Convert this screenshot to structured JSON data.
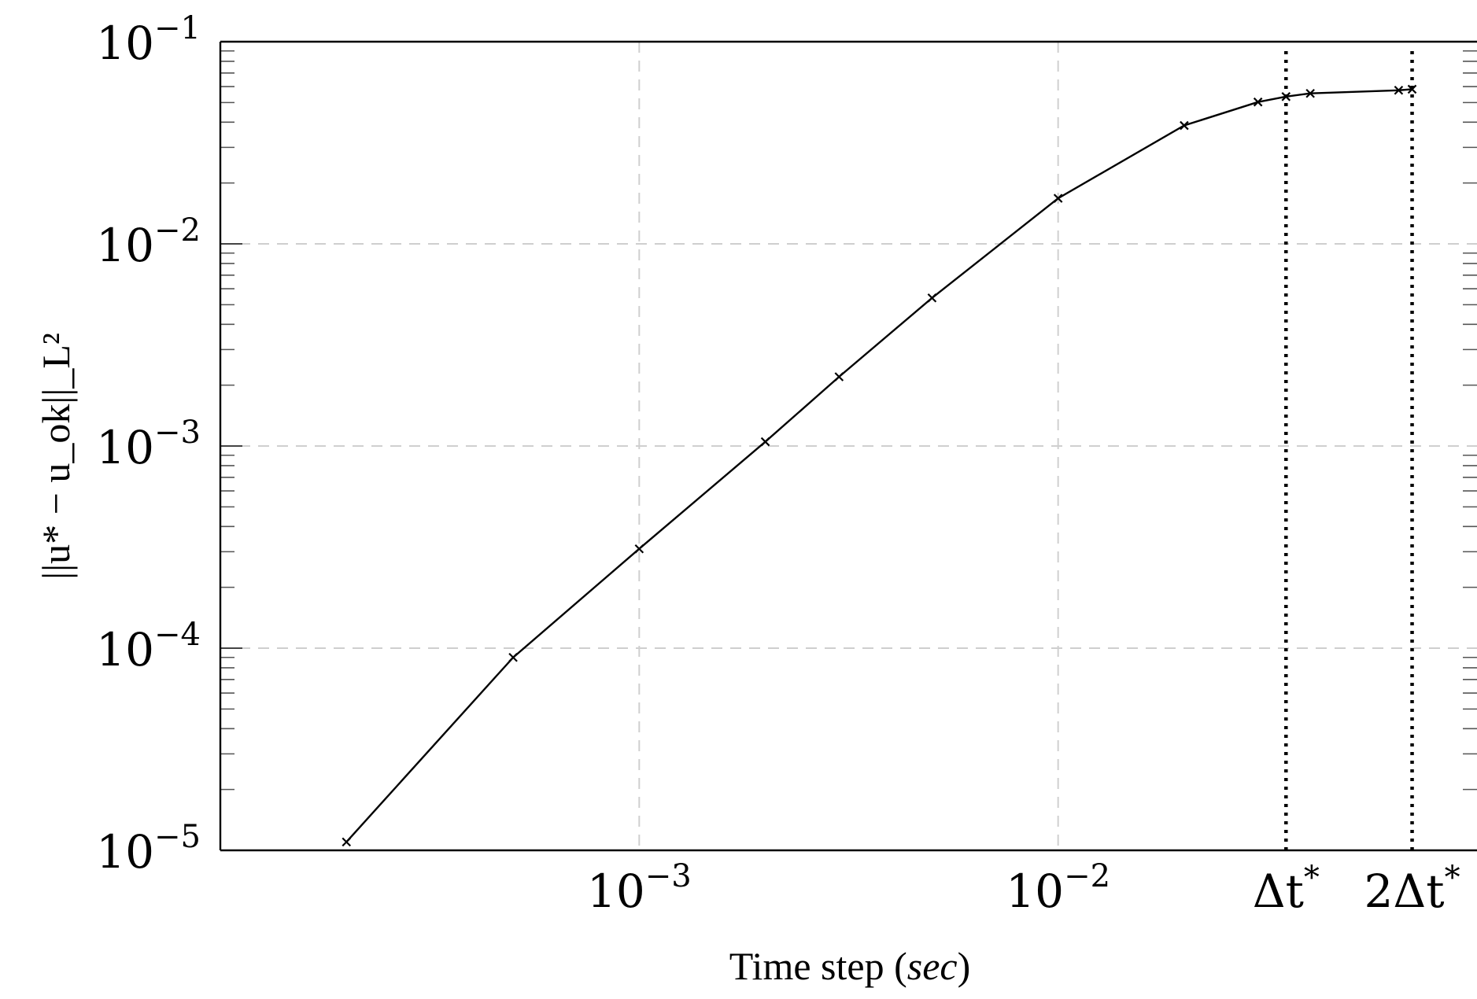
{
  "chart_data": {
    "type": "line",
    "title": "",
    "xlabel": "Time step",
    "xlabel_unit": "sec",
    "ylabel": "||u* − u_ok||_L²",
    "x_scale": "log",
    "y_scale": "log",
    "xlim": [
      0.0001,
      0.1
    ],
    "ylim": [
      1e-05,
      0.1
    ],
    "grid": true,
    "legend": "none",
    "x_ticks": [
      {
        "value": 0.001,
        "base": "10",
        "exp": "−3"
      },
      {
        "value": 0.01,
        "base": "10",
        "exp": "−2"
      }
    ],
    "y_ticks": [
      {
        "value": 0.1,
        "base": "10",
        "exp": "−1"
      },
      {
        "value": 0.01,
        "base": "10",
        "exp": "−2"
      },
      {
        "value": 0.001,
        "base": "10",
        "exp": "−3"
      },
      {
        "value": 0.0001,
        "base": "10",
        "exp": "−4"
      },
      {
        "value": 1e-05,
        "base": "10",
        "exp": "−5"
      }
    ],
    "reference_lines": [
      {
        "x": 0.035,
        "label_main": "Δt",
        "label_sup": "*",
        "style": "dotted"
      },
      {
        "x": 0.07,
        "label_main": "2Δt",
        "label_sup": "*",
        "style": "dotted"
      }
    ],
    "series": [
      {
        "marker": "x",
        "color": "#000000",
        "points": [
          {
            "x": 0.0002,
            "y": 1.1e-05
          },
          {
            "x": 0.0005,
            "y": 9e-05
          },
          {
            "x": 0.001,
            "y": 0.00031
          },
          {
            "x": 0.002,
            "y": 0.00105
          },
          {
            "x": 0.003,
            "y": 0.0022
          },
          {
            "x": 0.005,
            "y": 0.0054
          },
          {
            "x": 0.01,
            "y": 0.0168
          },
          {
            "x": 0.02,
            "y": 0.0385
          },
          {
            "x": 0.03,
            "y": 0.0503
          },
          {
            "x": 0.035,
            "y": 0.0535
          },
          {
            "x": 0.04,
            "y": 0.0555
          },
          {
            "x": 0.065,
            "y": 0.0575
          },
          {
            "x": 0.07,
            "y": 0.0582
          }
        ]
      }
    ]
  }
}
